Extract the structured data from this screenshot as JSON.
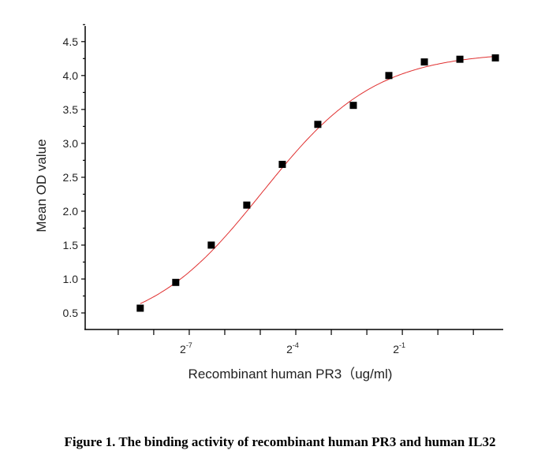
{
  "chart_data": {
    "type": "scatter",
    "title": "",
    "xlabel": "Recombinant human PR3（ug/ml)",
    "ylabel": "Mean OD value",
    "xscale": "log2",
    "x_log2": [
      -8.38,
      -7.38,
      -6.38,
      -5.38,
      -4.38,
      -3.38,
      -2.38,
      -1.38,
      -0.38,
      0.62,
      1.62
    ],
    "y": [
      0.57,
      0.95,
      1.5,
      2.09,
      2.69,
      3.28,
      3.56,
      4.0,
      4.2,
      4.24,
      4.26
    ],
    "xticks_log2": [
      -9,
      -8,
      -7,
      -6,
      -5,
      -4,
      -3,
      -2,
      -1,
      0,
      1
    ],
    "xtick_labels": [
      {
        "exp": -7,
        "base": "2",
        "sup": "-7"
      },
      {
        "exp": -4,
        "base": "2",
        "sup": "-4"
      },
      {
        "exp": -1,
        "base": "2",
        "sup": "-1"
      }
    ],
    "yticks": [
      "0.5",
      "1.0",
      "1.5",
      "2.0",
      "2.5",
      "3.0",
      "3.5",
      "4.0",
      "4.5"
    ],
    "ylim": [
      0.256,
      4.73
    ],
    "xlim_log2": [
      -9.93,
      1.84
    ],
    "fit": {
      "bottom": 0.2,
      "top": 4.35,
      "center_log2": -4.95,
      "hill": 0.9,
      "color": "#e03030"
    },
    "marker_color": "#000000",
    "grid": false
  },
  "caption": "Figure 1. The binding activity of recombinant human PR3 and human IL32"
}
